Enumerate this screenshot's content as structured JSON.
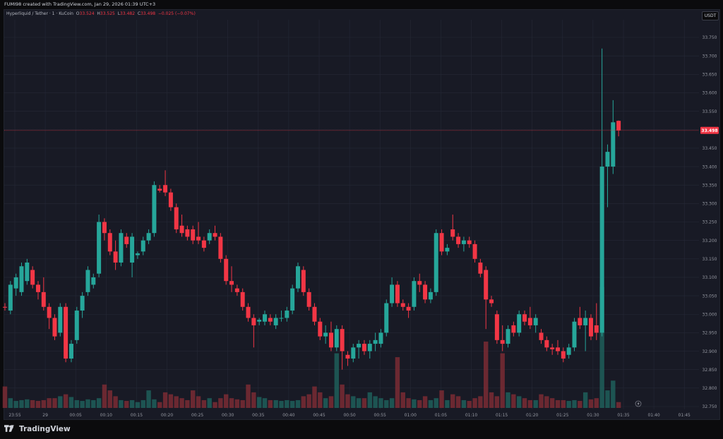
{
  "header": {
    "attribution": "FUMI98 created with TradingView.com, Jan 29, 2026 01:39 UTC+3"
  },
  "legend": {
    "symbol": "Hyperliquid / Tether · 1 · KuCoin",
    "o_label": "O",
    "o_value": "33.524",
    "h_label": "H",
    "h_value": "33.525",
    "l_label": "L",
    "l_value": "33.482",
    "c_label": "C",
    "c_value": "33.498",
    "change": "−0.025 (−0.07%)"
  },
  "currency_button": "USDT",
  "price_tag": "33.498",
  "footer": {
    "brand": "TradingView"
  },
  "colors": {
    "up": "#26a69a",
    "down": "#f23645",
    "vol_up": "#1f5f5a",
    "vol_down": "#7a2b34",
    "grid": "#252836",
    "axis_text": "#9598a1",
    "bg": "#181a25"
  },
  "chart_data": {
    "type": "candlestick",
    "title": "",
    "xlabel": "",
    "ylabel": "",
    "ylim": [
      32.75,
      33.775
    ],
    "yticks": [
      "33.750",
      "33.700",
      "33.650",
      "33.600",
      "33.550",
      "33.500",
      "33.450",
      "33.400",
      "33.350",
      "33.300",
      "33.250",
      "33.200",
      "33.150",
      "33.100",
      "33.050",
      "33.000",
      "32.950",
      "32.900",
      "32.850",
      "32.800",
      "32.750"
    ],
    "xticks": [
      "23:55",
      "29",
      "00:05",
      "00:10",
      "00:15",
      "00:20",
      "00:25",
      "00:30",
      "00:35",
      "00:40",
      "00:45",
      "00:50",
      "00:55",
      "01:00",
      "01:05",
      "01:10",
      "01:15",
      "01:20",
      "01:25",
      "01:30",
      "01:35",
      "01:40",
      "01:45"
    ],
    "candles": [
      {
        "o": 33.02,
        "h": 33.03,
        "l": 33.01,
        "c": 33.018,
        "v": 55
      },
      {
        "o": 33.01,
        "h": 33.09,
        "l": 33.0,
        "c": 33.08,
        "v": 25
      },
      {
        "o": 33.07,
        "h": 33.11,
        "l": 33.05,
        "c": 33.1,
        "v": 18
      },
      {
        "o": 33.06,
        "h": 33.14,
        "l": 33.05,
        "c": 33.13,
        "v": 20
      },
      {
        "o": 33.09,
        "h": 33.15,
        "l": 33.08,
        "c": 33.14,
        "v": 22
      },
      {
        "o": 33.12,
        "h": 33.13,
        "l": 33.07,
        "c": 33.08,
        "v": 20
      },
      {
        "o": 33.08,
        "h": 33.09,
        "l": 33.04,
        "c": 33.06,
        "v": 18
      },
      {
        "o": 33.06,
        "h": 33.1,
        "l": 33.01,
        "c": 33.02,
        "v": 20
      },
      {
        "o": 33.02,
        "h": 33.03,
        "l": 32.96,
        "c": 32.99,
        "v": 25
      },
      {
        "o": 32.99,
        "h": 33.0,
        "l": 32.93,
        "c": 32.94,
        "v": 25
      },
      {
        "o": 32.95,
        "h": 33.03,
        "l": 32.94,
        "c": 33.02,
        "v": 30
      },
      {
        "o": 33.02,
        "h": 33.03,
        "l": 32.87,
        "c": 32.88,
        "v": 35
      },
      {
        "o": 32.88,
        "h": 32.93,
        "l": 32.87,
        "c": 32.92,
        "v": 28
      },
      {
        "o": 32.93,
        "h": 33.02,
        "l": 32.92,
        "c": 33.01,
        "v": 20
      },
      {
        "o": 33.01,
        "h": 33.06,
        "l": 32.99,
        "c": 33.05,
        "v": 18
      },
      {
        "o": 33.06,
        "h": 33.13,
        "l": 33.05,
        "c": 33.12,
        "v": 22
      },
      {
        "o": 33.08,
        "h": 33.11,
        "l": 33.07,
        "c": 33.1,
        "v": 20
      },
      {
        "o": 33.11,
        "h": 33.27,
        "l": 33.1,
        "c": 33.25,
        "v": 25
      },
      {
        "o": 33.25,
        "h": 33.26,
        "l": 33.2,
        "c": 33.22,
        "v": 60
      },
      {
        "o": 33.22,
        "h": 33.23,
        "l": 33.16,
        "c": 33.17,
        "v": 45
      },
      {
        "o": 33.17,
        "h": 33.2,
        "l": 33.12,
        "c": 33.14,
        "v": 30
      },
      {
        "o": 33.14,
        "h": 33.23,
        "l": 33.13,
        "c": 33.22,
        "v": 20
      },
      {
        "o": 33.21,
        "h": 33.22,
        "l": 33.18,
        "c": 33.19,
        "v": 18
      },
      {
        "o": 33.14,
        "h": 33.22,
        "l": 33.1,
        "c": 33.21,
        "v": 20
      },
      {
        "o": 33.16,
        "h": 33.17,
        "l": 33.15,
        "c": 33.165,
        "v": 15
      },
      {
        "o": 33.17,
        "h": 33.21,
        "l": 33.16,
        "c": 33.2,
        "v": 20
      },
      {
        "o": 33.2,
        "h": 33.23,
        "l": 33.19,
        "c": 33.22,
        "v": 45
      },
      {
        "o": 33.22,
        "h": 33.36,
        "l": 33.21,
        "c": 33.35,
        "v": 22
      },
      {
        "o": 33.34,
        "h": 33.35,
        "l": 33.33,
        "c": 33.335,
        "v": 15
      },
      {
        "o": 33.35,
        "h": 33.39,
        "l": 33.32,
        "c": 33.33,
        "v": 40
      },
      {
        "o": 33.33,
        "h": 33.34,
        "l": 33.28,
        "c": 33.29,
        "v": 35
      },
      {
        "o": 33.29,
        "h": 33.3,
        "l": 33.22,
        "c": 33.23,
        "v": 30
      },
      {
        "o": 33.24,
        "h": 33.27,
        "l": 33.21,
        "c": 33.22,
        "v": 25
      },
      {
        "o": 33.23,
        "h": 33.24,
        "l": 33.2,
        "c": 33.21,
        "v": 20
      },
      {
        "o": 33.23,
        "h": 33.24,
        "l": 33.19,
        "c": 33.2,
        "v": 45
      },
      {
        "o": 33.21,
        "h": 33.25,
        "l": 33.19,
        "c": 33.2,
        "v": 30
      },
      {
        "o": 33.2,
        "h": 33.21,
        "l": 33.17,
        "c": 33.18,
        "v": 20
      },
      {
        "o": 33.2,
        "h": 33.23,
        "l": 33.19,
        "c": 33.22,
        "v": 25
      },
      {
        "o": 33.22,
        "h": 33.24,
        "l": 33.2,
        "c": 33.21,
        "v": 15
      },
      {
        "o": 33.21,
        "h": 33.22,
        "l": 33.14,
        "c": 33.15,
        "v": 25
      },
      {
        "o": 33.15,
        "h": 33.16,
        "l": 33.08,
        "c": 33.09,
        "v": 35
      },
      {
        "o": 33.09,
        "h": 33.13,
        "l": 33.06,
        "c": 33.08,
        "v": 25
      },
      {
        "o": 33.07,
        "h": 33.08,
        "l": 33.05,
        "c": 33.06,
        "v": 22
      },
      {
        "o": 33.06,
        "h": 33.07,
        "l": 33.01,
        "c": 33.02,
        "v": 20
      },
      {
        "o": 33.02,
        "h": 33.03,
        "l": 32.98,
        "c": 32.99,
        "v": 60
      },
      {
        "o": 32.99,
        "h": 33.0,
        "l": 32.91,
        "c": 32.97,
        "v": 40
      },
      {
        "o": 32.98,
        "h": 32.99,
        "l": 32.97,
        "c": 32.985,
        "v": 28
      },
      {
        "o": 32.98,
        "h": 33.01,
        "l": 32.97,
        "c": 33.0,
        "v": 25
      },
      {
        "o": 32.99,
        "h": 33.0,
        "l": 32.97,
        "c": 32.98,
        "v": 20
      },
      {
        "o": 32.97,
        "h": 33.0,
        "l": 32.96,
        "c": 32.99,
        "v": 20
      },
      {
        "o": 32.99,
        "h": 33.01,
        "l": 32.98,
        "c": 32.99,
        "v": 18
      },
      {
        "o": 32.99,
        "h": 33.02,
        "l": 32.98,
        "c": 33.01,
        "v": 20
      },
      {
        "o": 33.01,
        "h": 33.08,
        "l": 33.0,
        "c": 33.07,
        "v": 18
      },
      {
        "o": 33.07,
        "h": 33.14,
        "l": 33.06,
        "c": 33.13,
        "v": 20
      },
      {
        "o": 33.12,
        "h": 33.13,
        "l": 33.05,
        "c": 33.06,
        "v": 30
      },
      {
        "o": 33.06,
        "h": 33.07,
        "l": 33.01,
        "c": 33.02,
        "v": 35
      },
      {
        "o": 33.02,
        "h": 33.03,
        "l": 32.97,
        "c": 32.98,
        "v": 55
      },
      {
        "o": 32.98,
        "h": 32.99,
        "l": 32.93,
        "c": 32.94,
        "v": 40
      },
      {
        "o": 32.94,
        "h": 32.97,
        "l": 32.92,
        "c": 32.95,
        "v": 25
      },
      {
        "o": 32.95,
        "h": 32.98,
        "l": 32.9,
        "c": 32.91,
        "v": 30
      },
      {
        "o": 32.91,
        "h": 32.97,
        "l": 32.9,
        "c": 32.96,
        "v": 140
      },
      {
        "o": 32.96,
        "h": 32.97,
        "l": 32.85,
        "c": 32.9,
        "v": 60
      },
      {
        "o": 32.89,
        "h": 32.9,
        "l": 32.86,
        "c": 32.88,
        "v": 35
      },
      {
        "o": 32.88,
        "h": 32.92,
        "l": 32.87,
        "c": 32.91,
        "v": 30
      },
      {
        "o": 32.91,
        "h": 32.93,
        "l": 32.88,
        "c": 32.92,
        "v": 25
      },
      {
        "o": 32.92,
        "h": 32.93,
        "l": 32.89,
        "c": 32.9,
        "v": 25
      },
      {
        "o": 32.9,
        "h": 32.93,
        "l": 32.88,
        "c": 32.92,
        "v": 40
      },
      {
        "o": 32.92,
        "h": 32.95,
        "l": 32.9,
        "c": 32.93,
        "v": 30
      },
      {
        "o": 32.92,
        "h": 32.96,
        "l": 32.91,
        "c": 32.95,
        "v": 25
      },
      {
        "o": 32.95,
        "h": 33.04,
        "l": 32.94,
        "c": 33.03,
        "v": 20
      },
      {
        "o": 33.03,
        "h": 33.1,
        "l": 33.02,
        "c": 33.08,
        "v": 25
      },
      {
        "o": 33.08,
        "h": 33.09,
        "l": 33.02,
        "c": 33.03,
        "v": 130
      },
      {
        "o": 33.03,
        "h": 33.04,
        "l": 33.01,
        "c": 33.02,
        "v": 40
      },
      {
        "o": 33.02,
        "h": 33.03,
        "l": 32.99,
        "c": 33.01,
        "v": 25
      },
      {
        "o": 33.02,
        "h": 33.1,
        "l": 33.01,
        "c": 33.09,
        "v": 22
      },
      {
        "o": 33.09,
        "h": 33.11,
        "l": 33.06,
        "c": 33.08,
        "v": 20
      },
      {
        "o": 33.08,
        "h": 33.09,
        "l": 33.03,
        "c": 33.04,
        "v": 30
      },
      {
        "o": 33.04,
        "h": 33.07,
        "l": 33.03,
        "c": 33.06,
        "v": 20
      },
      {
        "o": 33.06,
        "h": 33.23,
        "l": 33.05,
        "c": 33.22,
        "v": 25
      },
      {
        "o": 33.22,
        "h": 33.23,
        "l": 33.16,
        "c": 33.17,
        "v": 45
      },
      {
        "o": 33.17,
        "h": 33.19,
        "l": 33.16,
        "c": 33.18,
        "v": 20
      },
      {
        "o": 33.23,
        "h": 33.27,
        "l": 33.2,
        "c": 33.21,
        "v": 35
      },
      {
        "o": 33.21,
        "h": 33.22,
        "l": 33.18,
        "c": 33.19,
        "v": 30
      },
      {
        "o": 33.19,
        "h": 33.21,
        "l": 33.17,
        "c": 33.2,
        "v": 20
      },
      {
        "o": 33.2,
        "h": 33.21,
        "l": 33.18,
        "c": 33.19,
        "v": 18
      },
      {
        "o": 33.19,
        "h": 33.2,
        "l": 33.14,
        "c": 33.15,
        "v": 25
      },
      {
        "o": 33.14,
        "h": 33.15,
        "l": 33.1,
        "c": 33.11,
        "v": 30
      },
      {
        "o": 33.12,
        "h": 33.13,
        "l": 32.96,
        "c": 33.04,
        "v": 170
      },
      {
        "o": 33.04,
        "h": 33.05,
        "l": 33.02,
        "c": 33.03,
        "v": 40
      },
      {
        "o": 33.0,
        "h": 33.01,
        "l": 32.92,
        "c": 32.93,
        "v": 30
      },
      {
        "o": 32.93,
        "h": 32.97,
        "l": 32.9,
        "c": 32.92,
        "v": 140
      },
      {
        "o": 32.92,
        "h": 32.97,
        "l": 32.91,
        "c": 32.96,
        "v": 40
      },
      {
        "o": 32.97,
        "h": 32.98,
        "l": 32.94,
        "c": 32.95,
        "v": 35
      },
      {
        "o": 32.95,
        "h": 33.01,
        "l": 32.94,
        "c": 33.0,
        "v": 30
      },
      {
        "o": 33.0,
        "h": 33.01,
        "l": 32.97,
        "c": 32.98,
        "v": 25
      },
      {
        "o": 32.99,
        "h": 33.02,
        "l": 32.96,
        "c": 32.97,
        "v": 20
      },
      {
        "o": 32.97,
        "h": 33.0,
        "l": 32.95,
        "c": 32.99,
        "v": 20
      },
      {
        "o": 32.95,
        "h": 32.96,
        "l": 32.92,
        "c": 32.93,
        "v": 35
      },
      {
        "o": 32.93,
        "h": 32.94,
        "l": 32.9,
        "c": 32.91,
        "v": 30
      },
      {
        "o": 32.91,
        "h": 32.92,
        "l": 32.89,
        "c": 32.905,
        "v": 25
      },
      {
        "o": 32.91,
        "h": 32.93,
        "l": 32.89,
        "c": 32.9,
        "v": 20
      },
      {
        "o": 32.9,
        "h": 32.91,
        "l": 32.87,
        "c": 32.88,
        "v": 20
      },
      {
        "o": 32.89,
        "h": 32.92,
        "l": 32.88,
        "c": 32.91,
        "v": 18
      },
      {
        "o": 32.91,
        "h": 32.99,
        "l": 32.9,
        "c": 32.98,
        "v": 20
      },
      {
        "o": 32.99,
        "h": 33.02,
        "l": 32.96,
        "c": 32.97,
        "v": 18
      },
      {
        "o": 32.97,
        "h": 33.01,
        "l": 32.9,
        "c": 32.99,
        "v": 40
      },
      {
        "o": 32.99,
        "h": 33.0,
        "l": 32.93,
        "c": 32.94,
        "v": 22
      },
      {
        "o": 32.97,
        "h": 33.03,
        "l": 32.93,
        "c": 32.95,
        "v": 25
      },
      {
        "o": 32.95,
        "h": 33.72,
        "l": 32.94,
        "c": 33.4,
        "v": 310
      },
      {
        "o": 33.4,
        "h": 33.46,
        "l": 33.29,
        "c": 33.44,
        "v": 45
      },
      {
        "o": 33.4,
        "h": 33.58,
        "l": 33.38,
        "c": 33.52,
        "v": 70
      },
      {
        "o": 33.524,
        "h": 33.525,
        "l": 33.482,
        "c": 33.498,
        "v": 15
      }
    ],
    "vmax": 520
  }
}
